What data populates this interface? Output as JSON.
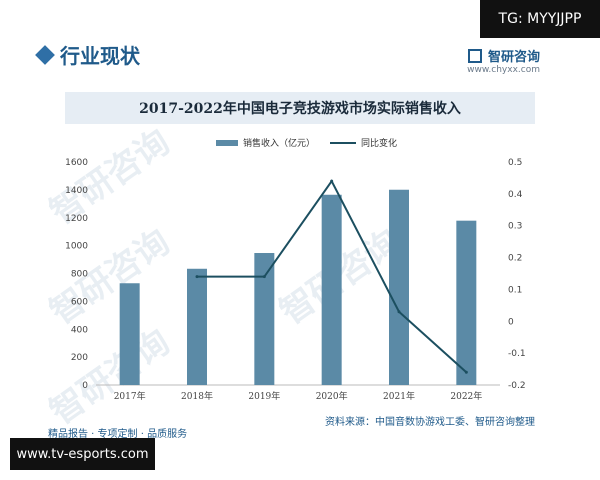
{
  "badge": {
    "text": "TG: MYYJJPP"
  },
  "header": {
    "section_title": "行业现状"
  },
  "brand": {
    "name": "智研咨询",
    "url": "www.chyxx.com"
  },
  "footer": {
    "left": "精品报告 · 专项定制 · 品质服务",
    "source": "资料来源：中国音数协游戏工委、智研咨询整理",
    "site_banner": "www.tv-esports.com"
  },
  "colors": {
    "bar": "#5b8aa6",
    "line": "#1c4f60",
    "accent": "#1f5a8a"
  },
  "chart_data": {
    "type": "bar",
    "title": "2017-2022年中国电子竞技游戏市场实际销售收入",
    "categories": [
      "2017年",
      "2018年",
      "2019年",
      "2020年",
      "2021年",
      "2022年"
    ],
    "series": [
      {
        "name": "销售收入（亿元）",
        "type": "bar",
        "axis": "left",
        "values": [
          730,
          834,
          947,
          1365,
          1401,
          1179
        ]
      },
      {
        "name": "同比变化",
        "type": "line",
        "axis": "right",
        "values": [
          null,
          0.14,
          0.14,
          0.44,
          0.03,
          -0.16
        ]
      }
    ],
    "ylim_left": [
      0,
      1600
    ],
    "yticks_left": [
      0,
      200,
      400,
      600,
      800,
      1000,
      1200,
      1400,
      1600
    ],
    "ylim_right": [
      -0.2,
      0.5
    ],
    "yticks_right": [
      -0.2,
      -0.1,
      0,
      0.1,
      0.2,
      0.3,
      0.4,
      0.5
    ],
    "ytick_labels_right": [
      "-0.2",
      "-0.1",
      "0",
      "0.1",
      "0.2",
      "0.3",
      "0.4",
      "0.5"
    ],
    "grid": false,
    "legend_position": "top-center"
  }
}
